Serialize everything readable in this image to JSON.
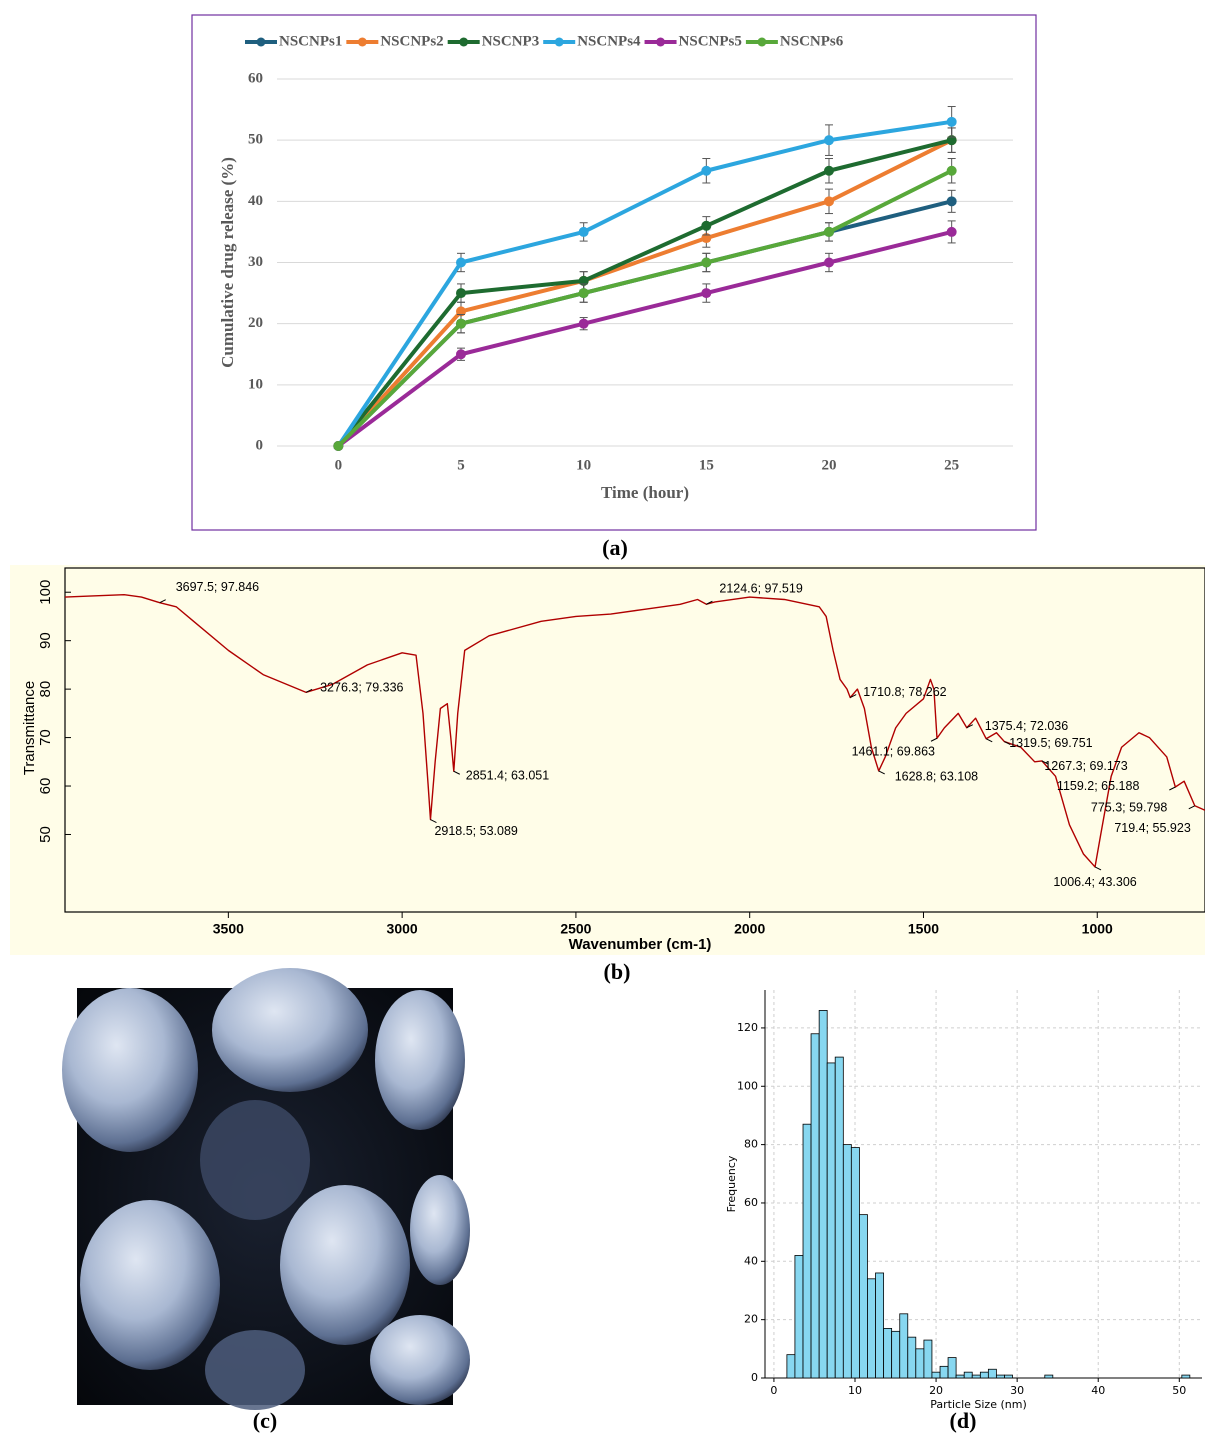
{
  "chart_data": [
    {
      "type": "line",
      "x_label": "Time (hour)",
      "y_label": "Cumulative drug release (%)",
      "x": [
        0,
        5,
        10,
        15,
        20,
        25
      ],
      "xlim": [
        -2.5,
        27.5
      ],
      "xticks": [
        0,
        5,
        10,
        15,
        20,
        25
      ],
      "ylim": [
        0,
        60
      ],
      "yticks": [
        0,
        10,
        20,
        30,
        40,
        50,
        60
      ],
      "grid": true,
      "legend": "top",
      "markers": true,
      "series": [
        {
          "name": "NSCNPs1",
          "color": "#1f5f7f",
          "values": [
            0,
            20,
            25,
            30,
            35,
            40
          ],
          "errors": [
            0,
            1.5,
            1.5,
            1.5,
            1.5,
            1.8
          ]
        },
        {
          "name": "NSCNPs2",
          "color": "#ed7d31",
          "values": [
            0,
            22,
            27,
            34,
            40,
            50
          ],
          "errors": [
            0,
            1.5,
            1.5,
            1.5,
            2,
            2
          ]
        },
        {
          "name": "NSCNP3",
          "color": "#1e6b30",
          "values": [
            0,
            25,
            27,
            36,
            45,
            50
          ],
          "errors": [
            0,
            1.5,
            1.5,
            1.5,
            2,
            2
          ]
        },
        {
          "name": "NSCNPs4",
          "color": "#2ca6df",
          "values": [
            0,
            30,
            35,
            45,
            50,
            53
          ],
          "errors": [
            0,
            1.5,
            1.5,
            2,
            2.5,
            2.5
          ]
        },
        {
          "name": "NSCNPs5",
          "color": "#9a2a98",
          "values": [
            0,
            15,
            20,
            25,
            30,
            35
          ],
          "errors": [
            0,
            1,
            1,
            1.5,
            1.5,
            1.8
          ]
        },
        {
          "name": "NSCNPs6",
          "color": "#58a83a",
          "values": [
            0,
            20,
            25,
            30,
            35,
            45
          ],
          "errors": [
            0,
            1.5,
            1.5,
            1.5,
            1.5,
            2
          ]
        }
      ]
    },
    {
      "type": "line",
      "x_label": "Wavenumber (cm-1)",
      "y_label": "Transmittance",
      "color": "#b00000",
      "markers": false,
      "xlim": [
        3970,
        690
      ],
      "xticks": [
        3500,
        3000,
        2500,
        2000,
        1500,
        1000
      ],
      "ylim": [
        34,
        105
      ],
      "yticks": [
        50,
        60,
        70,
        80,
        90,
        100
      ],
      "x": [
        3970,
        3900,
        3800,
        3750,
        3697.5,
        3650,
        3600,
        3500,
        3400,
        3276.3,
        3200,
        3100,
        3000,
        2960,
        2940,
        2925,
        2918.5,
        2905,
        2890,
        2870,
        2860,
        2851.4,
        2840,
        2820,
        2750,
        2600,
        2500,
        2400,
        2300,
        2200,
        2150,
        2124.6,
        2100,
        2000,
        1900,
        1800,
        1780,
        1760,
        1740,
        1720,
        1710.8,
        1690,
        1670,
        1650,
        1628.8,
        1610,
        1580,
        1550,
        1500,
        1480,
        1470,
        1461.1,
        1440,
        1400,
        1375.4,
        1350,
        1319.5,
        1290,
        1267.3,
        1220,
        1180,
        1159.2,
        1120,
        1080,
        1040,
        1006.4,
        990,
        960,
        930,
        880,
        850,
        800,
        775.3,
        750,
        719.4,
        690
      ],
      "values": [
        99,
        99.2,
        99.5,
        99,
        97.846,
        97,
        94,
        88,
        83,
        79.336,
        81,
        85,
        87.5,
        87,
        75,
        60,
        53.089,
        65,
        76,
        77,
        70,
        63.051,
        75,
        88,
        91,
        94,
        95,
        95.5,
        96.5,
        97.5,
        98.5,
        97.519,
        98,
        99,
        98.5,
        97,
        95,
        88,
        82,
        80,
        78.262,
        80,
        76,
        68,
        63.108,
        66,
        72,
        75,
        78,
        82,
        80,
        69.863,
        72,
        75,
        72.036,
        74,
        69.751,
        71,
        69.173,
        68,
        65,
        65.188,
        62,
        52,
        46,
        43.306,
        50,
        62,
        68,
        71,
        70,
        66,
        59.798,
        61,
        55.923,
        55
      ],
      "annotations": [
        {
          "x": 3697.5,
          "y": 97.846,
          "label": "3697.5; 97.846"
        },
        {
          "x": 2124.6,
          "y": 97.519,
          "label": "2124.6; 97.519"
        },
        {
          "x": 3276.3,
          "y": 79.336,
          "label": "3276.3; 79.336"
        },
        {
          "x": 2918.5,
          "y": 53.089,
          "label": "2918.5; 53.089"
        },
        {
          "x": 2851.4,
          "y": 63.051,
          "label": "2851.4; 63.051"
        },
        {
          "x": 1710.8,
          "y": 78.262,
          "label": "1710.8; 78.262"
        },
        {
          "x": 1461.1,
          "y": 69.863,
          "label": "1461.1; 69.863"
        },
        {
          "x": 1628.8,
          "y": 63.108,
          "label": "1628.8; 63.108"
        },
        {
          "x": 1375.4,
          "y": 72.036,
          "label": "1375.4; 72.036"
        },
        {
          "x": 1319.5,
          "y": 69.751,
          "label": "1319.5; 69.751"
        },
        {
          "x": 1267.3,
          "y": 69.173,
          "label": "1267.3; 69.173"
        },
        {
          "x": 1159.2,
          "y": 65.188,
          "label": "1159.2; 65.188"
        },
        {
          "x": 775.3,
          "y": 59.798,
          "label": "775.3; 59.798"
        },
        {
          "x": 719.4,
          "y": 55.923,
          "label": "719.4; 55.923"
        },
        {
          "x": 1006.4,
          "y": 43.306,
          "label": "1006.4; 43.306"
        }
      ]
    },
    {
      "type": "histogram",
      "x_label": "Particle Size (nm)",
      "y_label": "Frequency",
      "color": "#87d7f0",
      "grid": true,
      "xlim": [
        -1.1,
        52.8
      ],
      "xticks": [
        0,
        10,
        20,
        30,
        40,
        50
      ],
      "ylim": [
        0,
        133
      ],
      "yticks": [
        0,
        20,
        40,
        60,
        80,
        100,
        120
      ],
      "bins": [
        1.6,
        2.59,
        3.59,
        4.58,
        5.58,
        6.57,
        7.56,
        8.56,
        9.55,
        10.55,
        11.54,
        12.53,
        13.53,
        14.52,
        15.52,
        16.51,
        17.5,
        18.5,
        19.49,
        20.49,
        21.48,
        22.47,
        23.47,
        24.46,
        25.46,
        26.45,
        27.44,
        28.44,
        29.43,
        30.43,
        31.42,
        32.41,
        33.41,
        34.4,
        35.4,
        36.39,
        37.38,
        38.38,
        39.37,
        40.37,
        41.36,
        42.35,
        43.35,
        44.34,
        45.34,
        46.33,
        47.32,
        48.32,
        49.31,
        50.31,
        51.3
      ],
      "counts": [
        8,
        42,
        87,
        118,
        126,
        108,
        110,
        80,
        79,
        56,
        34,
        36,
        17,
        16,
        22,
        14,
        10,
        13,
        2,
        4,
        7,
        1,
        2,
        1,
        2,
        3,
        1,
        1,
        0,
        0,
        0,
        0,
        1,
        0,
        0,
        0,
        0,
        0,
        0,
        0,
        0,
        0,
        0,
        0,
        0,
        0,
        0,
        0,
        0,
        1
      ]
    }
  ],
  "panel_labels": [
    "(a)",
    "(b)",
    "(c)",
    "(d)"
  ]
}
